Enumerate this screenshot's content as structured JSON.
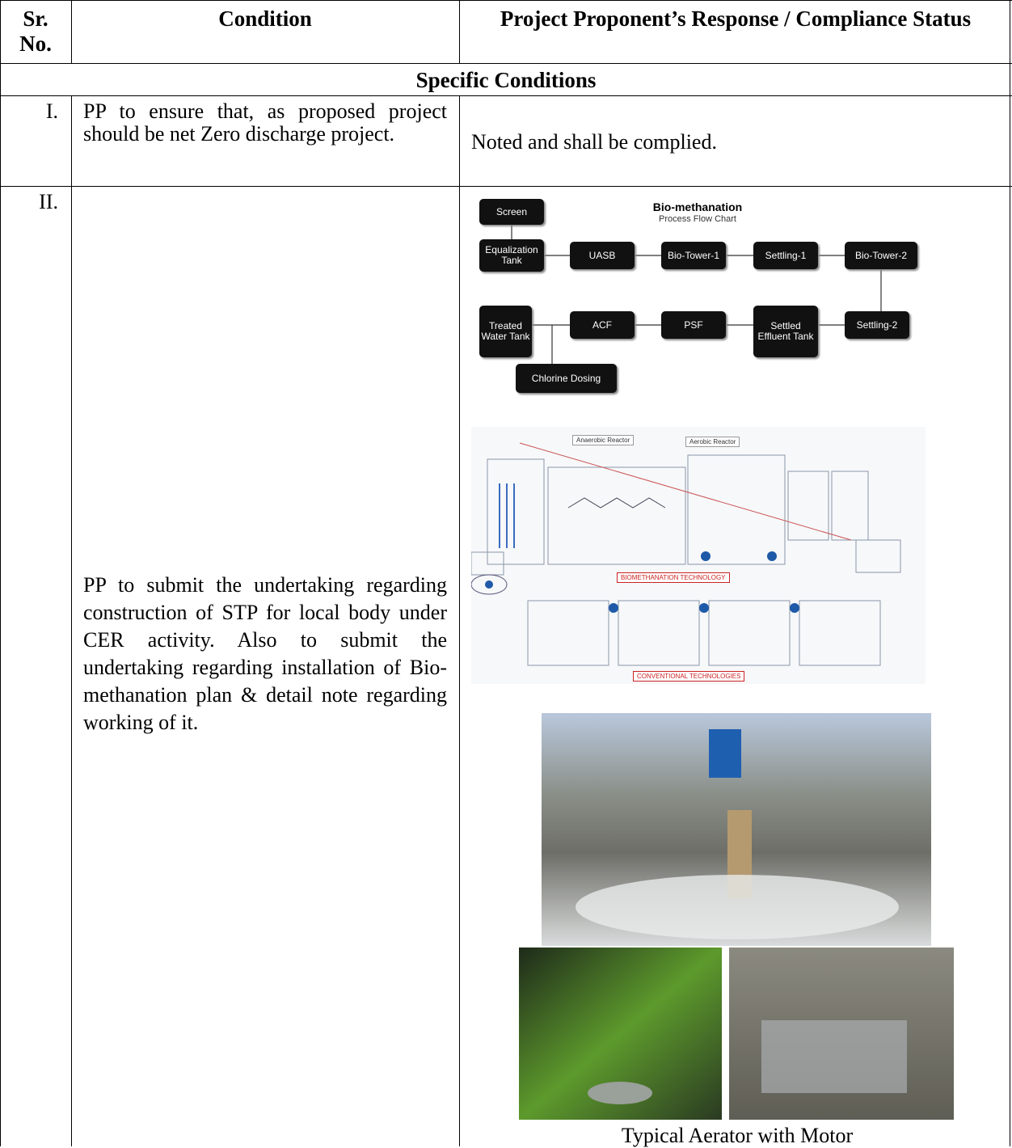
{
  "table": {
    "header": [
      "Sr.\nNo.",
      "Condition",
      "Project Proponent’s Response / Compliance Status"
    ],
    "section": "Specific Conditions",
    "rows": [
      {
        "sr": "I.",
        "condition": "PP to ensure that, as proposed project should be net Zero discharge project.",
        "response": "Noted and shall be complied."
      },
      {
        "sr": "II.",
        "condition": "PP to submit the undertaking regarding construction of STP for local body under CER activity. Also to submit the undertaking regarding installation of Bio-methanation plan & detail note regarding working of it.",
        "caption": "Typical Aerator with Motor"
      }
    ]
  },
  "flow_chart": {
    "title": "Bio-methanation",
    "subtitle": "Process Flow Chart",
    "nodes": [
      "Screen",
      "Equalization Tank",
      "UASB",
      "Bio-Tower-1",
      "Settling-1",
      "Bio-Tower-2",
      "Settling-2",
      "Settled Effluent Tank",
      "PSF",
      "ACF",
      "Treated Water Tank",
      "Chlorine Dosing"
    ]
  },
  "process_diagram": {
    "labels": [
      "Anaerobic Reactor",
      "Aerobic Reactor",
      "BIOMETHANATION TECHNOLOGY",
      "CONVENTIONAL TECHNOLOGIES"
    ]
  }
}
